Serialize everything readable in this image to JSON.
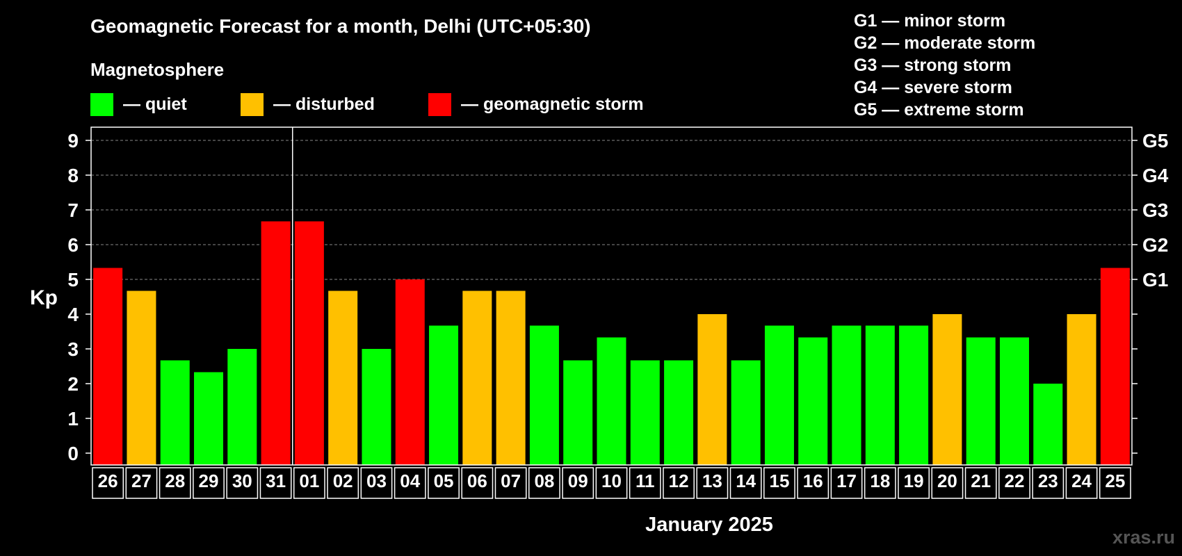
{
  "title": "Geomagnetic Forecast for a month, Delhi (UTC+05:30)",
  "legend": {
    "heading": "Magnetosphere",
    "items": [
      {
        "label": "— quiet",
        "color": "#00ff00"
      },
      {
        "label": "— disturbed",
        "color": "#ffc000"
      },
      {
        "label": "— geomagnetic storm",
        "color": "#ff0000"
      }
    ]
  },
  "storm_scale": [
    "G1 — minor storm",
    "G2 — moderate storm",
    "G3 — strong storm",
    "G4 — severe storm",
    "G5 — extreme storm"
  ],
  "watermark": "xras.ru",
  "chart_data": {
    "type": "bar",
    "ylabel": "Kp",
    "xlabel": "January 2025",
    "ylim": [
      0,
      9
    ],
    "y_ticks": [
      0,
      1,
      2,
      3,
      4,
      5,
      6,
      7,
      8,
      9
    ],
    "right_axis_labels": [
      {
        "value": 5,
        "label": "G1"
      },
      {
        "value": 6,
        "label": "G2"
      },
      {
        "value": 7,
        "label": "G3"
      },
      {
        "value": 8,
        "label": "G4"
      },
      {
        "value": 9,
        "label": "G5"
      }
    ],
    "grid": true,
    "month_divider_after": "31",
    "categories": [
      "26",
      "27",
      "28",
      "29",
      "30",
      "31",
      "01",
      "02",
      "03",
      "04",
      "05",
      "06",
      "07",
      "08",
      "09",
      "10",
      "11",
      "12",
      "13",
      "14",
      "15",
      "16",
      "17",
      "18",
      "19",
      "20",
      "21",
      "22",
      "23",
      "24",
      "25"
    ],
    "values": [
      5.33,
      4.67,
      2.67,
      2.33,
      3.0,
      6.67,
      6.67,
      4.67,
      3.0,
      5.0,
      3.67,
      4.67,
      4.67,
      3.67,
      2.67,
      3.33,
      2.67,
      2.67,
      4.0,
      2.67,
      3.67,
      3.33,
      3.67,
      3.67,
      3.67,
      4.0,
      3.33,
      3.33,
      2.0,
      4.0,
      5.33
    ],
    "status": [
      "storm",
      "disturbed",
      "quiet",
      "quiet",
      "quiet",
      "storm",
      "storm",
      "disturbed",
      "quiet",
      "storm",
      "quiet",
      "disturbed",
      "disturbed",
      "quiet",
      "quiet",
      "quiet",
      "quiet",
      "quiet",
      "disturbed",
      "quiet",
      "quiet",
      "quiet",
      "quiet",
      "quiet",
      "quiet",
      "disturbed",
      "quiet",
      "quiet",
      "quiet",
      "disturbed",
      "storm"
    ],
    "status_colors": {
      "quiet": "#00ff00",
      "disturbed": "#ffc000",
      "storm": "#ff0000"
    }
  }
}
